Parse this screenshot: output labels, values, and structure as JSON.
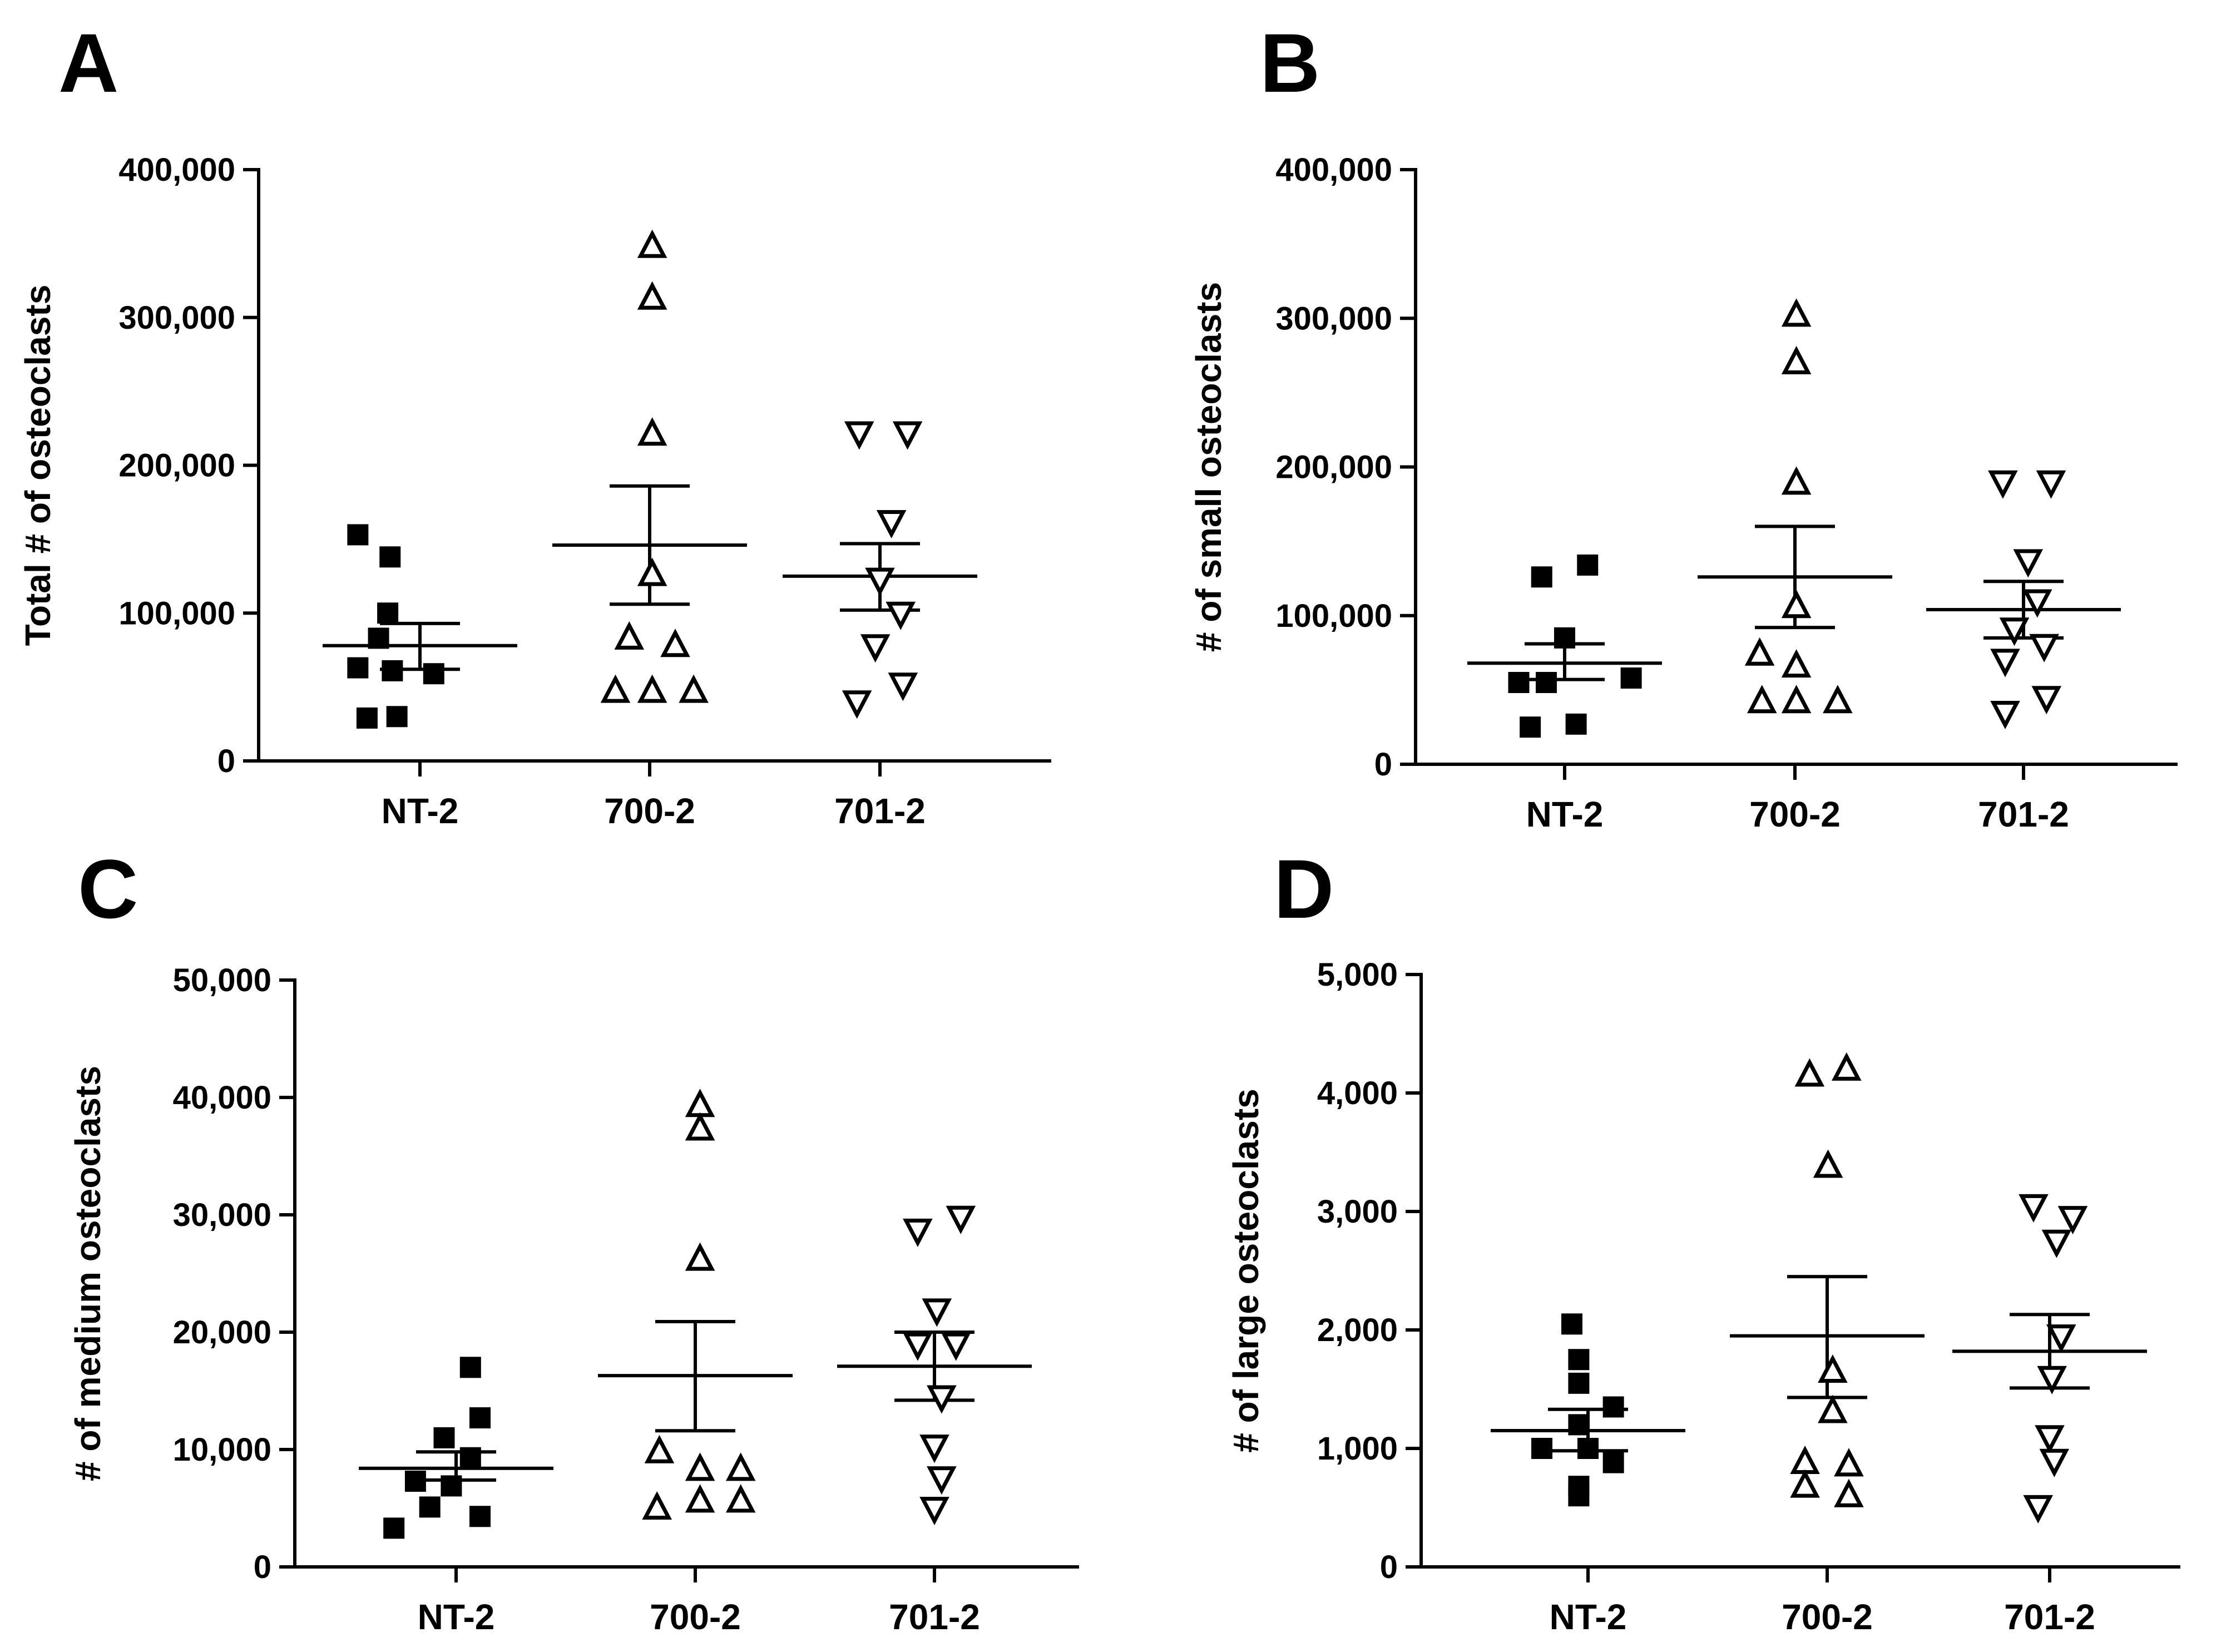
{
  "chart_data": [
    {
      "panel": "A",
      "type": "scatter",
      "ylabel": "Total # of osteoclasts",
      "categories": [
        "NT-2",
        "700-2",
        "701-2"
      ],
      "ylim": [
        0,
        400000
      ],
      "yticks": [
        0,
        100000,
        200000,
        300000,
        400000
      ],
      "ytick_labels": [
        "0",
        "100,000",
        "200,000",
        "300,000",
        "400,000"
      ],
      "series": [
        {
          "category": "NT-2",
          "marker": "square",
          "points": [
            [
              0.73,
              153000
            ],
            [
              0.87,
              138000
            ],
            [
              0.86,
              100000
            ],
            [
              0.82,
              83000
            ],
            [
              0.73,
              63000
            ],
            [
              0.88,
              61000
            ],
            [
              1.06,
              59000
            ],
            [
              0.77,
              29000
            ],
            [
              0.9,
              30000
            ]
          ],
          "mean": 78000,
          "sem_low": 62000,
          "sem_high": 93000
        },
        {
          "category": "700-2",
          "marker": "triangle-up",
          "points": [
            [
              2.01,
              348000
            ],
            [
              2.01,
              313000
            ],
            [
              2.01,
              221000
            ],
            [
              2.01,
              126000
            ],
            [
              1.91,
              83000
            ],
            [
              2.11,
              78000
            ],
            [
              1.85,
              47000
            ],
            [
              2.01,
              47000
            ],
            [
              2.19,
              47000
            ]
          ],
          "mean": 146000,
          "sem_low": 106000,
          "sem_high": 186000
        },
        {
          "category": "701-2",
          "marker": "triangle-down",
          "points": [
            [
              2.91,
              222000
            ],
            [
              3.12,
              222000
            ],
            [
              3.05,
              162000
            ],
            [
              3.0,
              123000
            ],
            [
              3.09,
              100000
            ],
            [
              2.98,
              78000
            ],
            [
              3.1,
              52000
            ],
            [
              2.9,
              40000
            ]
          ],
          "mean": 125000,
          "sem_low": 102000,
          "sem_high": 147000
        }
      ]
    },
    {
      "panel": "B",
      "type": "scatter",
      "ylabel": "# of small osteoclasts",
      "categories": [
        "NT-2",
        "700-2",
        "701-2"
      ],
      "ylim": [
        0,
        400000
      ],
      "yticks": [
        0,
        100000,
        200000,
        300000,
        400000
      ],
      "ytick_labels": [
        "0",
        "100,000",
        "200,000",
        "300,000",
        "400,000"
      ],
      "series": [
        {
          "category": "NT-2",
          "marker": "square",
          "points": [
            [
              0.9,
              126000
            ],
            [
              1.1,
              134000
            ],
            [
              1.0,
              85000
            ],
            [
              0.8,
              55000
            ],
            [
              0.92,
              55000
            ],
            [
              1.29,
              58000
            ],
            [
              0.85,
              25000
            ],
            [
              1.05,
              27000
            ]
          ],
          "mean": 68000,
          "sem_low": 57000,
          "sem_high": 81000
        },
        {
          "category": "700-2",
          "marker": "triangle-up",
          "points": [
            [
              2.01,
              302000
            ],
            [
              2.01,
              270000
            ],
            [
              2.01,
              189000
            ],
            [
              2.01,
              106000
            ],
            [
              1.85,
              74000
            ],
            [
              2.01,
              66000
            ],
            [
              1.86,
              42000
            ],
            [
              2.01,
              42000
            ],
            [
              2.19,
              42000
            ]
          ],
          "mean": 126000,
          "sem_low": 92000,
          "sem_high": 160000
        },
        {
          "category": "701-2",
          "marker": "triangle-down",
          "points": [
            [
              2.91,
              190000
            ],
            [
              3.12,
              190000
            ],
            [
              3.02,
              137000
            ],
            [
              3.06,
              110000
            ],
            [
              2.96,
              91000
            ],
            [
              3.09,
              80000
            ],
            [
              2.92,
              70000
            ],
            [
              3.1,
              45000
            ],
            [
              2.92,
              35000
            ]
          ],
          "mean": 104000,
          "sem_low": 85000,
          "sem_high": 123000
        }
      ]
    },
    {
      "panel": "C",
      "type": "scatter",
      "ylabel": "# of medium osteoclasts",
      "categories": [
        "NT-2",
        "700-2",
        "701-2"
      ],
      "ylim": [
        0,
        50000
      ],
      "yticks": [
        0,
        10000,
        20000,
        30000,
        40000,
        50000
      ],
      "ytick_labels": [
        "0",
        "10,000",
        "20,000",
        "30,000",
        "40,000",
        "50,000"
      ],
      "series": [
        {
          "category": "NT-2",
          "marker": "square",
          "points": [
            [
              1.06,
              17000
            ],
            [
              1.1,
              12700
            ],
            [
              0.95,
              11000
            ],
            [
              1.06,
              9300
            ],
            [
              0.83,
              7300
            ],
            [
              0.98,
              6900
            ],
            [
              0.89,
              5100
            ],
            [
              1.1,
              4300
            ],
            [
              0.74,
              3300
            ]
          ],
          "mean": 8400,
          "sem_low": 7400,
          "sem_high": 9800
        },
        {
          "category": "700-2",
          "marker": "triangle-up",
          "points": [
            [
              2.02,
              39300
            ],
            [
              2.02,
              37300
            ],
            [
              2.02,
              26200
            ],
            [
              1.85,
              9800
            ],
            [
              2.02,
              8300
            ],
            [
              2.19,
              8300
            ],
            [
              1.84,
              5000
            ],
            [
              2.02,
              5600
            ],
            [
              2.19,
              5600
            ]
          ],
          "mean": 16300,
          "sem_low": 11600,
          "sem_high": 20900
        },
        {
          "category": "701-2",
          "marker": "triangle-down",
          "points": [
            [
              2.93,
              28700
            ],
            [
              3.11,
              29800
            ],
            [
              3.01,
              21900
            ],
            [
              2.93,
              19000
            ],
            [
              3.09,
              19000
            ],
            [
              3.03,
              14500
            ],
            [
              3.0,
              10300
            ],
            [
              3.03,
              7600
            ],
            [
              3.0,
              5000
            ]
          ],
          "mean": 17100,
          "sem_low": 14200,
          "sem_high": 20000
        }
      ]
    },
    {
      "panel": "D",
      "type": "scatter",
      "ylabel": "# of large osteoclasts",
      "categories": [
        "NT-2",
        "700-2",
        "701-2"
      ],
      "ylim": [
        0,
        5000
      ],
      "yticks": [
        0,
        1000,
        2000,
        3000,
        4000,
        5000
      ],
      "ytick_labels": [
        "0",
        "1,000",
        "2,000",
        "3,000",
        "4,000",
        "5,000"
      ],
      "series": [
        {
          "category": "NT-2",
          "marker": "square",
          "points": [
            [
              0.93,
              2050
            ],
            [
              0.96,
              1750
            ],
            [
              0.96,
              1550
            ],
            [
              1.11,
              1350
            ],
            [
              0.96,
              1200
            ],
            [
              1.0,
              1000
            ],
            [
              0.8,
              1000
            ],
            [
              1.11,
              880
            ],
            [
              0.96,
              680
            ],
            [
              0.96,
              600
            ]
          ],
          "mean": 1150,
          "sem_low": 980,
          "sem_high": 1330
        },
        {
          "category": "700-2",
          "marker": "triangle-up",
          "points": [
            [
              1.96,
              4150
            ],
            [
              2.12,
              4200
            ],
            [
              2.04,
              3380
            ],
            [
              2.06,
              1650
            ],
            [
              2.06,
              1310
            ],
            [
              1.94,
              880
            ],
            [
              2.13,
              860
            ],
            [
              1.94,
              680
            ],
            [
              2.13,
              600
            ]
          ],
          "mean": 1950,
          "sem_low": 1430,
          "sem_high": 2450
        },
        {
          "category": "701-2",
          "marker": "triangle-down",
          "points": [
            [
              2.93,
              3050
            ],
            [
              3.1,
              2950
            ],
            [
              3.03,
              2750
            ],
            [
              3.05,
              1950
            ],
            [
              3.01,
              1600
            ],
            [
              3.0,
              1100
            ],
            [
              3.02,
              900
            ],
            [
              2.95,
              510
            ]
          ],
          "mean": 1820,
          "sem_low": 1510,
          "sem_high": 2130
        }
      ]
    }
  ]
}
